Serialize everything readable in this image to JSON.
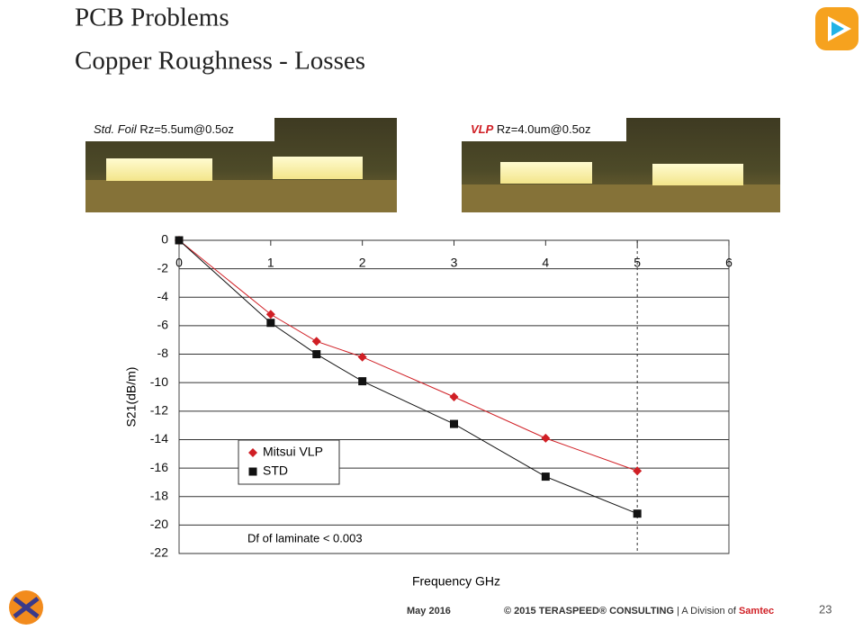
{
  "slide": {
    "title": "PCB Problems",
    "subtitle": "Copper Roughness - Losses",
    "photo_left": {
      "label_prefix": "Std. Foil",
      "label_rest": "Rz=5.5um@0.5oz"
    },
    "photo_right": {
      "label_prefix": "VLP",
      "label_rest": "Rz=4.0um@0.5oz"
    },
    "footer": {
      "date": "May 2016",
      "copyright": "© 2015 TERASPEED® CONSULTING",
      "division": "| A Division of",
      "company": "Samtec",
      "page": "23"
    }
  },
  "chart_data": {
    "type": "scatter",
    "x_label": "Frequency GHz",
    "y_label": "S21(dB/m)",
    "annotation": "Df of laminate < 0.003",
    "xlim": [
      0,
      6
    ],
    "xticks": [
      0,
      1,
      2,
      3,
      4,
      5,
      6
    ],
    "ylim": [
      -22,
      0
    ],
    "yticks": [
      0,
      -2,
      -4,
      -6,
      -8,
      -10,
      -12,
      -14,
      -16,
      -18,
      -20,
      -22
    ],
    "grid": true,
    "legend": "lower left",
    "series": [
      {
        "name": "Mitsui VLP",
        "color": "#d01f25",
        "marker": "diamond",
        "x": [
          0,
          1,
          1.5,
          2,
          3,
          4,
          5
        ],
        "values": [
          0,
          -5.2,
          -7.1,
          -8.2,
          -11,
          -13.9,
          -16.2
        ]
      },
      {
        "name": "STD",
        "color": "#111111",
        "marker": "square",
        "x": [
          0,
          1,
          1.5,
          2,
          3,
          4,
          5
        ],
        "values": [
          0,
          -5.8,
          -8,
          -9.9,
          -12.9,
          -16.6,
          -19.2
        ]
      }
    ]
  }
}
